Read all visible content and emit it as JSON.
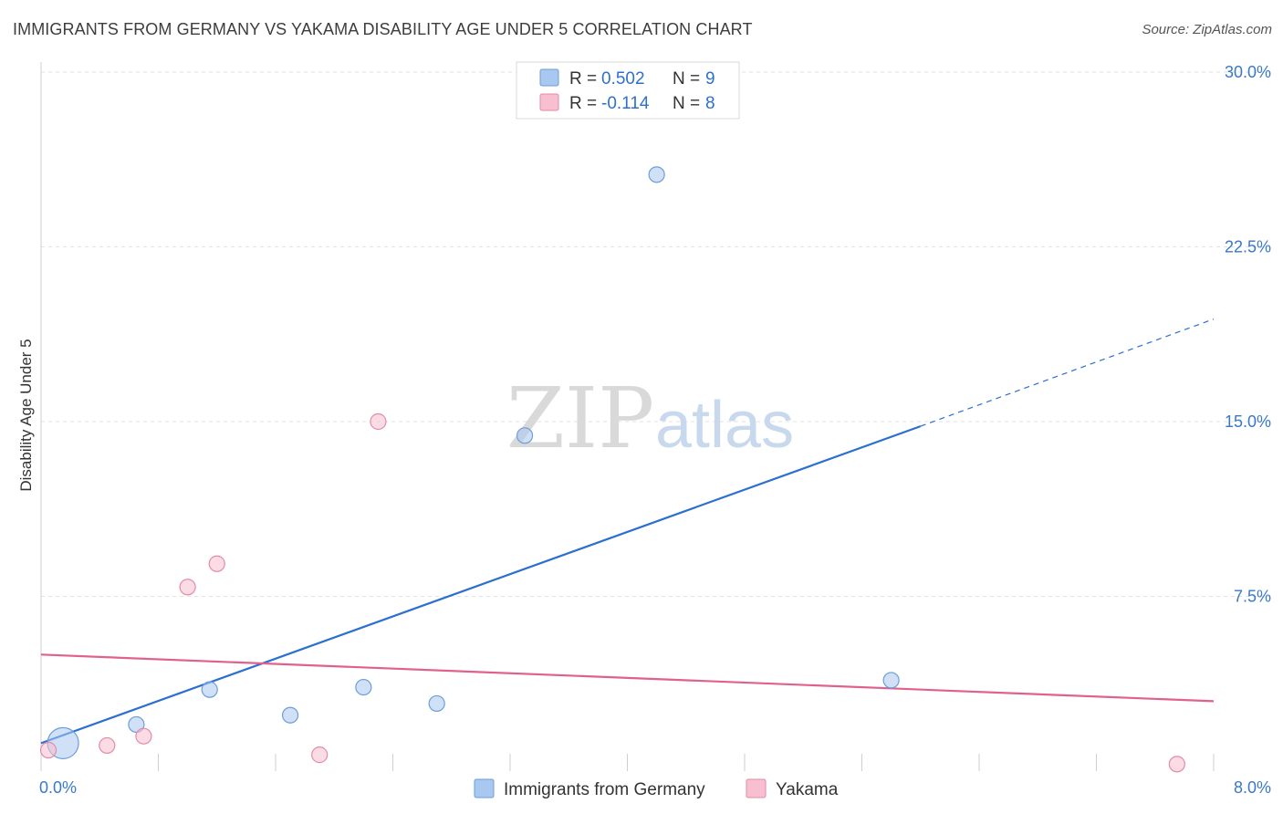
{
  "header": {
    "title": "IMMIGRANTS FROM GERMANY VS YAKAMA DISABILITY AGE UNDER 5 CORRELATION CHART",
    "source": "Source: ZipAtlas.com"
  },
  "watermark": {
    "zip": "ZIP",
    "atlas": "atlas"
  },
  "legend": {
    "rows": [
      {
        "r_label": "R =",
        "r_value": "0.502",
        "n_label": "N =",
        "n_value": "9",
        "color": "#a9c8f0"
      },
      {
        "r_label": "R =",
        "r_value": "-0.114",
        "n_label": "N =",
        "n_value": "8",
        "color": "#f7bfcf"
      }
    ]
  },
  "chart_data": {
    "type": "scatter",
    "ylabel": "Disability Age Under 5",
    "xlabel": "",
    "xlim": [
      0,
      8
    ],
    "ylim": [
      0,
      31
    ],
    "x_ticks": [
      "0.0%",
      "8.0%"
    ],
    "y_ticks": [
      {
        "value": 7.5,
        "label": "7.5%"
      },
      {
        "value": 15,
        "label": "15.0%"
      },
      {
        "value": 22.5,
        "label": "22.5%"
      },
      {
        "value": 30,
        "label": "30.0%"
      }
    ],
    "grid": true,
    "series": [
      {
        "name": "Immigrants from Germany",
        "color": "#a9c8f0",
        "stroke": "#6b9ed8",
        "trend_color": "#2b6fd0",
        "points": [
          {
            "x": 0.15,
            "y": 1.2,
            "size": "large"
          },
          {
            "x": 0.65,
            "y": 2.0
          },
          {
            "x": 1.15,
            "y": 3.5
          },
          {
            "x": 1.7,
            "y": 2.4
          },
          {
            "x": 2.2,
            "y": 3.6
          },
          {
            "x": 2.7,
            "y": 2.9
          },
          {
            "x": 3.3,
            "y": 14.4
          },
          {
            "x": 4.2,
            "y": 25.6
          },
          {
            "x": 5.8,
            "y": 3.9
          }
        ],
        "trend": {
          "x0": 0.0,
          "y0": 1.2,
          "x1": 6.0,
          "y1": 14.8,
          "x_dash_end": 8.0,
          "y_dash_end": 19.4
        }
      },
      {
        "name": "Yakama",
        "color": "#f7bfcf",
        "stroke": "#e48aa6",
        "trend_color": "#e0608f",
        "points": [
          {
            "x": 0.05,
            "y": 0.9
          },
          {
            "x": 0.45,
            "y": 1.1
          },
          {
            "x": 0.7,
            "y": 1.5
          },
          {
            "x": 1.0,
            "y": 7.9
          },
          {
            "x": 1.2,
            "y": 8.9
          },
          {
            "x": 1.9,
            "y": 0.7
          },
          {
            "x": 2.3,
            "y": 15.0
          },
          {
            "x": 7.75,
            "y": 0.3
          }
        ],
        "trend": {
          "x0": 0.0,
          "y0": 5.0,
          "x1": 8.0,
          "y1": 3.0
        }
      }
    ]
  }
}
